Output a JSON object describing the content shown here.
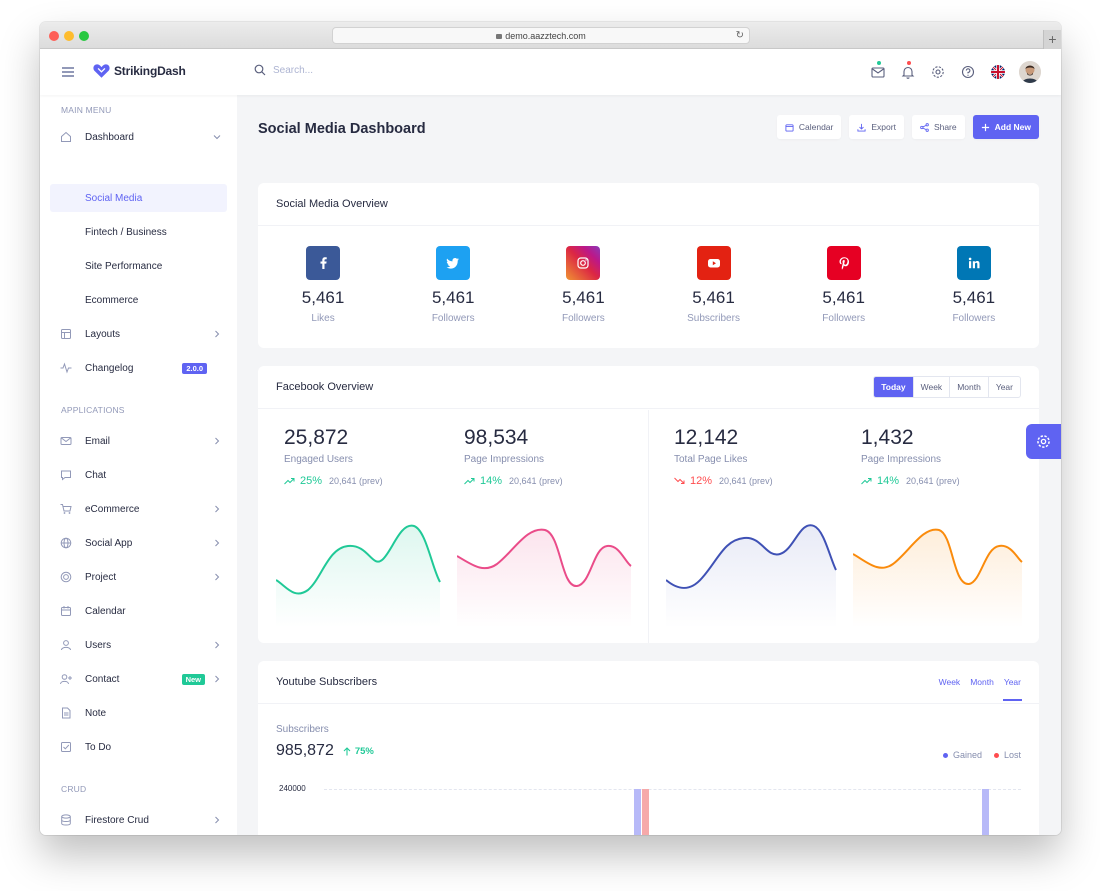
{
  "browser": {
    "url": "demo.aazztech.com"
  },
  "app": {
    "name": "StrikingDash"
  },
  "search": {
    "placeholder": "Search..."
  },
  "sidebar": {
    "main_menu_title": "MAIN MENU",
    "applications_title": "APPLICATIONS",
    "crud_title": "CRUD",
    "dashboard": "Dashboard",
    "dashboard_sub": [
      "Social Media",
      "Fintech / Business",
      "Site Performance",
      "Ecommerce"
    ],
    "layouts": "Layouts",
    "changelog": "Changelog",
    "changelog_badge": "2.0.0",
    "apps": [
      "Email",
      "Chat",
      "eCommerce",
      "Social App",
      "Project",
      "Calendar",
      "Users",
      "Contact",
      "Note",
      "To Do"
    ],
    "contact_badge": "New",
    "firestore": "Firestore Crud"
  },
  "page": {
    "title": "Social Media Dashboard",
    "actions": {
      "calendar": "Calendar",
      "export": "Export",
      "share": "Share",
      "add_new": "Add New"
    }
  },
  "overview": {
    "title": "Social Media Overview",
    "items": [
      {
        "icon": "facebook-icon",
        "color": "#3b5998",
        "value": "5,461",
        "label": "Likes"
      },
      {
        "icon": "twitter-icon",
        "color": "#1da1f2",
        "value": "5,461",
        "label": "Followers"
      },
      {
        "icon": "instagram-icon",
        "color": "#c13584",
        "value": "5,461",
        "label": "Followers"
      },
      {
        "icon": "youtube-icon",
        "color": "#e32212",
        "value": "5,461",
        "label": "Subscribers"
      },
      {
        "icon": "pinterest-icon",
        "color": "#e60023",
        "value": "5,461",
        "label": "Followers"
      },
      {
        "icon": "linkedin-icon",
        "color": "#0077b5",
        "value": "5,461",
        "label": "Followers"
      }
    ]
  },
  "facebook": {
    "title": "Facebook Overview",
    "periods": [
      "Today",
      "Week",
      "Month",
      "Year"
    ],
    "selected": "Today",
    "stats": [
      {
        "value": "25,872",
        "label": "Engaged Users",
        "change": "25%",
        "trend": "up",
        "prev": "20,641 (prev)",
        "color": "#20c997"
      },
      {
        "value": "98,534",
        "label": "Page Impressions",
        "change": "14%",
        "trend": "up",
        "prev": "20,641 (prev)",
        "color": "#ea4c89"
      },
      {
        "value": "12,142",
        "label": "Total Page Likes",
        "change": "12%",
        "trend": "down",
        "prev": "20,641 (prev)",
        "color": "#3f51b5"
      },
      {
        "value": "1,432",
        "label": "Page Impressions",
        "change": "14%",
        "trend": "up",
        "prev": "20,641 (prev)",
        "color": "#fa8b0c"
      }
    ]
  },
  "youtube": {
    "title": "Youtube Subscribers",
    "periods": [
      "Week",
      "Month",
      "Year"
    ],
    "selected": "Year",
    "subscribers_label": "Subscribers",
    "subscribers_value": "985,872",
    "growth": "75%",
    "legend": [
      {
        "name": "Gained",
        "color": "#5f63f2"
      },
      {
        "name": "Lost",
        "color": "#ff4d4f"
      }
    ],
    "y_tick": "240000"
  }
}
